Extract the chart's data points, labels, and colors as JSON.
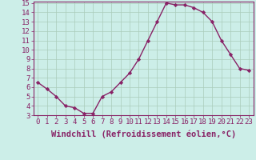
{
  "x": [
    0,
    1,
    2,
    3,
    4,
    5,
    6,
    7,
    8,
    9,
    10,
    11,
    12,
    13,
    14,
    15,
    16,
    17,
    18,
    19,
    20,
    21,
    22,
    23
  ],
  "y": [
    6.5,
    5.8,
    5.0,
    4.0,
    3.8,
    3.2,
    3.2,
    5.0,
    5.5,
    6.5,
    7.5,
    9.0,
    11.0,
    13.0,
    15.0,
    14.8,
    14.8,
    14.5,
    14.0,
    13.0,
    11.0,
    9.5,
    8.0,
    7.8
  ],
  "line_color": "#882266",
  "marker": "D",
  "marker_size": 2.2,
  "bg_color": "#cceee8",
  "grid_color": "#aaccbb",
  "xlabel": "Windchill (Refroidissement éolien,°C)",
  "xlim_min": -0.5,
  "xlim_max": 23.5,
  "ylim_min": 3,
  "ylim_max": 15,
  "yticks": [
    3,
    4,
    5,
    6,
    7,
    8,
    9,
    10,
    11,
    12,
    13,
    14,
    15
  ],
  "tick_color": "#882266",
  "label_color": "#882266",
  "spine_color": "#882266",
  "xlabel_fontsize": 7.5,
  "tick_fontsize": 6.5,
  "linewidth": 1.0
}
